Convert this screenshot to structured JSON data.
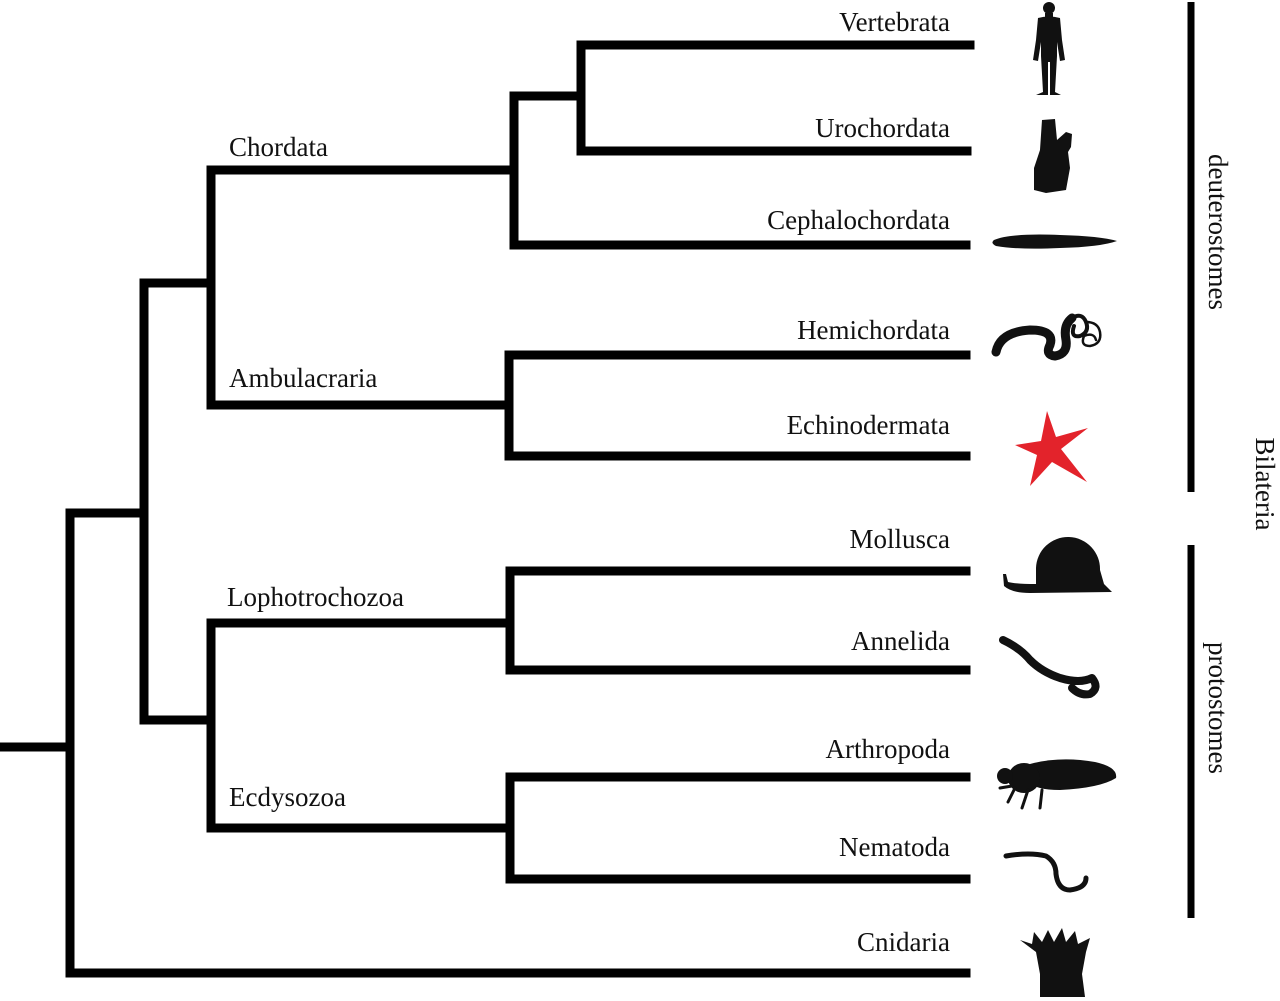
{
  "colors": {
    "line": "#000000",
    "text": "#111111",
    "highlight": "#e3232b"
  },
  "taxa": [
    {
      "name": "Vertebrata",
      "icon": "human-icon",
      "highlight": false
    },
    {
      "name": "Urochordata",
      "icon": "tunicate-icon",
      "highlight": false
    },
    {
      "name": "Cephalochordata",
      "icon": "lancelet-icon",
      "highlight": false
    },
    {
      "name": "Hemichordata",
      "icon": "acorn-worm-icon",
      "highlight": false
    },
    {
      "name": "Echinodermata",
      "icon": "starfish-icon",
      "highlight": true
    },
    {
      "name": "Mollusca",
      "icon": "snail-icon",
      "highlight": false
    },
    {
      "name": "Annelida",
      "icon": "earthworm-icon",
      "highlight": false
    },
    {
      "name": "Arthropoda",
      "icon": "fly-icon",
      "highlight": false
    },
    {
      "name": "Nematoda",
      "icon": "nematode-icon",
      "highlight": false
    },
    {
      "name": "Cnidaria",
      "icon": "sea-anemone-icon",
      "highlight": false
    }
  ],
  "clades": {
    "chordata": "Chordata",
    "ambulacraria": "Ambulacraria",
    "lophotrochozoa": "Lophotrochozoa",
    "ecdysozoa": "Ecdysozoa"
  },
  "groups": {
    "deuterostomes": "deuterostomes",
    "protostomes": "protostomes",
    "bilateria": "Bilateria"
  }
}
